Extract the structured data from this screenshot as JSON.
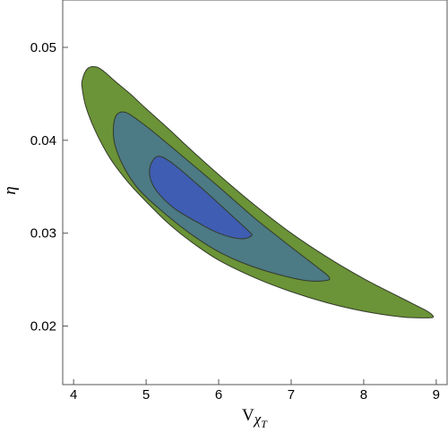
{
  "chart_data": {
    "type": "contour",
    "title": "",
    "xlabel": "V",
    "xlabel_subscript": "χ",
    "xlabel_subsubscript": "T",
    "ylabel": "η",
    "xlim": [
      3.85,
      9.15
    ],
    "ylim": [
      0.0137,
      0.0551
    ],
    "x_ticks": [
      4,
      5,
      6,
      7,
      8,
      9
    ],
    "x_tick_labels": [
      "4",
      "5",
      "6",
      "7",
      "8",
      "9"
    ],
    "y_ticks": [
      0.02,
      0.03,
      0.04,
      0.05
    ],
    "y_tick_labels": [
      "0.02",
      "0.03",
      "0.04",
      "0.05"
    ],
    "grid": false,
    "legend": "none",
    "colors": {
      "outer": "#6b9337",
      "middle": "#4c7a85",
      "inner": "#3f5db2",
      "edge": "#333b2c"
    },
    "series": [
      {
        "level": "outer",
        "points": [
          [
            4.12,
            0.0465
          ],
          [
            4.19,
            0.0477
          ],
          [
            4.31,
            0.0479
          ],
          [
            4.42,
            0.0474
          ],
          [
            4.58,
            0.0463
          ],
          [
            4.78,
            0.045
          ],
          [
            5.0,
            0.0434
          ],
          [
            5.3,
            0.0413
          ],
          [
            5.6,
            0.0391
          ],
          [
            6.0,
            0.0363
          ],
          [
            6.5,
            0.033
          ],
          [
            7.0,
            0.03
          ],
          [
            7.5,
            0.0274
          ],
          [
            8.0,
            0.0251
          ],
          [
            8.5,
            0.0231
          ],
          [
            8.83,
            0.0218
          ],
          [
            8.93,
            0.0213
          ],
          [
            8.96,
            0.021
          ],
          [
            8.92,
            0.0209
          ],
          [
            8.72,
            0.0209
          ],
          [
            8.5,
            0.021
          ],
          [
            8.0,
            0.0216
          ],
          [
            7.5,
            0.0225
          ],
          [
            7.0,
            0.0237
          ],
          [
            6.5,
            0.0252
          ],
          [
            6.0,
            0.0271
          ],
          [
            5.6,
            0.0292
          ],
          [
            5.3,
            0.0311
          ],
          [
            5.0,
            0.0334
          ],
          [
            4.75,
            0.0355
          ],
          [
            4.5,
            0.0381
          ],
          [
            4.3,
            0.041
          ],
          [
            4.17,
            0.0436
          ],
          [
            4.12,
            0.0455
          ]
        ]
      },
      {
        "level": "middle",
        "points": [
          [
            4.55,
            0.0415
          ],
          [
            4.6,
            0.0428
          ],
          [
            4.72,
            0.043
          ],
          [
            4.9,
            0.0421
          ],
          [
            5.1,
            0.0409
          ],
          [
            5.5,
            0.0383
          ],
          [
            6.0,
            0.035
          ],
          [
            6.5,
            0.0316
          ],
          [
            7.0,
            0.0285
          ],
          [
            7.35,
            0.0264
          ],
          [
            7.52,
            0.0253
          ],
          [
            7.48,
            0.0249
          ],
          [
            7.2,
            0.0249
          ],
          [
            6.8,
            0.0256
          ],
          [
            6.4,
            0.0266
          ],
          [
            6.0,
            0.028
          ],
          [
            5.6,
            0.03
          ],
          [
            5.2,
            0.0325
          ],
          [
            4.9,
            0.0347
          ],
          [
            4.7,
            0.037
          ],
          [
            4.57,
            0.0395
          ]
        ]
      },
      {
        "level": "inner",
        "points": [
          [
            5.05,
            0.037
          ],
          [
            5.12,
            0.0381
          ],
          [
            5.22,
            0.0382
          ],
          [
            5.4,
            0.0373
          ],
          [
            5.7,
            0.0353
          ],
          [
            6.0,
            0.0332
          ],
          [
            6.25,
            0.0314
          ],
          [
            6.43,
            0.0301
          ],
          [
            6.45,
            0.0297
          ],
          [
            6.3,
            0.0294
          ],
          [
            6.0,
            0.03
          ],
          [
            5.7,
            0.0312
          ],
          [
            5.4,
            0.0326
          ],
          [
            5.18,
            0.0342
          ],
          [
            5.07,
            0.0356
          ]
        ]
      }
    ]
  }
}
